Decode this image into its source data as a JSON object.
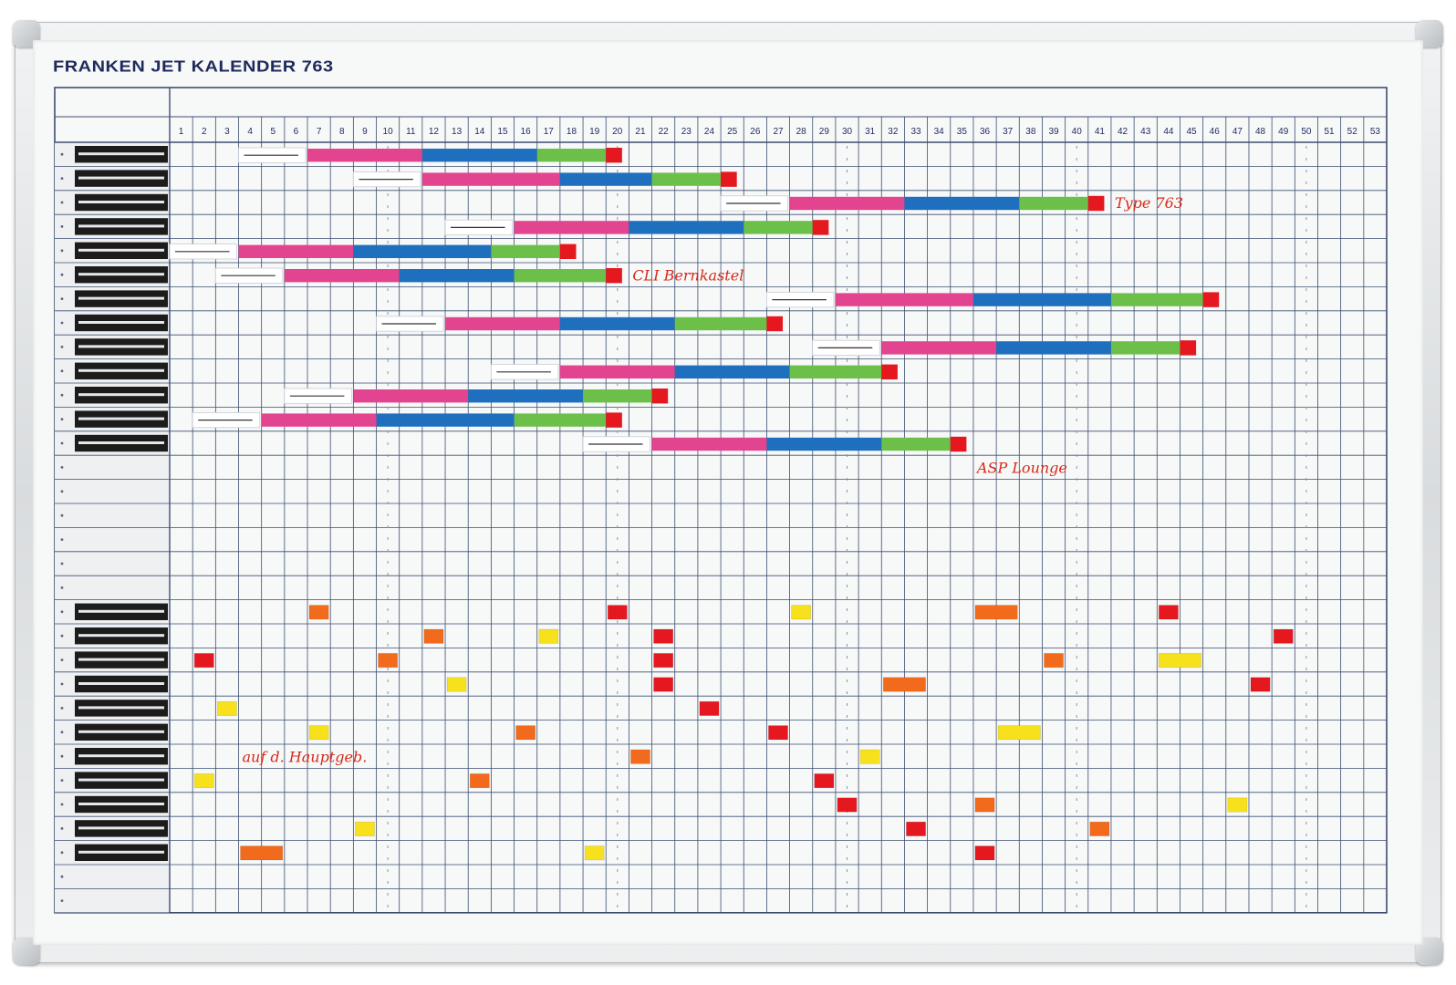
{
  "board": {
    "title": "FRANKEN JET KALENDER 763",
    "colors": {
      "line": "#3d4f70",
      "pink": "#e2448f",
      "blue": "#1f6fbf",
      "green": "#6cc04a",
      "red": "#e5171f",
      "orange": "#f26a1b",
      "yellow": "#f7e11c",
      "marker": "#d62a1a"
    },
    "day_numbers": [
      "1",
      "2",
      "3",
      "4",
      "5",
      "6",
      "7",
      "8",
      "9",
      "10",
      "11",
      "12",
      "13",
      "14",
      "15",
      "16",
      "17",
      "18",
      "19",
      "20",
      "21",
      "22",
      "23",
      "24",
      "25",
      "26",
      "27",
      "28",
      "29",
      "30",
      "31",
      "32",
      "33",
      "34",
      "35",
      "36",
      "37",
      "38",
      "39",
      "40",
      "41",
      "42",
      "43",
      "44",
      "45",
      "46",
      "47",
      "48",
      "49",
      "50",
      "51",
      "52",
      "53"
    ],
    "handwritten_notes": [
      {
        "text": "Type 763",
        "col": 41,
        "row": 2
      },
      {
        "text": "CLI Bernkastel",
        "col": 20,
        "row": 5
      },
      {
        "text": "ASP Lounge",
        "col": 35,
        "row": 13
      },
      {
        "text": "auf d. Hauptgeb.",
        "col": 3,
        "row": 25
      }
    ],
    "project_rows": [
      {
        "row": 0,
        "start": 6,
        "segments": [
          5,
          5,
          3
        ]
      },
      {
        "row": 1,
        "start": 11,
        "segments": [
          6,
          4,
          3
        ]
      },
      {
        "row": 2,
        "start": 27,
        "segments": [
          5,
          5,
          3
        ]
      },
      {
        "row": 3,
        "start": 15,
        "segments": [
          5,
          5,
          3
        ]
      },
      {
        "row": 4,
        "start": 3,
        "segments": [
          5,
          6,
          3
        ]
      },
      {
        "row": 5,
        "start": 5,
        "segments": [
          5,
          5,
          4
        ]
      },
      {
        "row": 6,
        "start": 29,
        "segments": [
          6,
          6,
          4
        ]
      },
      {
        "row": 7,
        "start": 12,
        "segments": [
          5,
          5,
          4
        ]
      },
      {
        "row": 8,
        "start": 31,
        "segments": [
          5,
          5,
          3
        ]
      },
      {
        "row": 9,
        "start": 17,
        "segments": [
          5,
          5,
          4
        ]
      },
      {
        "row": 10,
        "start": 8,
        "segments": [
          5,
          5,
          3
        ]
      },
      {
        "row": 11,
        "start": 4,
        "segments": [
          5,
          6,
          4
        ]
      },
      {
        "row": 12,
        "start": 21,
        "segments": [
          5,
          5,
          3
        ]
      }
    ],
    "magnets": [
      {
        "col": 6,
        "row": 19,
        "w": 1,
        "color": "orange"
      },
      {
        "col": 19,
        "row": 19,
        "w": 1,
        "color": "red"
      },
      {
        "col": 27,
        "row": 19,
        "w": 1,
        "color": "yellow"
      },
      {
        "col": 35,
        "row": 19,
        "w": 2,
        "color": "orange"
      },
      {
        "col": 43,
        "row": 19,
        "w": 1,
        "color": "red"
      },
      {
        "col": 11,
        "row": 20,
        "w": 1,
        "color": "orange"
      },
      {
        "col": 16,
        "row": 20,
        "w": 1,
        "color": "yellow"
      },
      {
        "col": 21,
        "row": 20,
        "w": 1,
        "color": "red"
      },
      {
        "col": 48,
        "row": 20,
        "w": 1,
        "color": "red"
      },
      {
        "col": 1,
        "row": 21,
        "w": 1,
        "color": "red"
      },
      {
        "col": 9,
        "row": 21,
        "w": 1,
        "color": "orange"
      },
      {
        "col": 21,
        "row": 21,
        "w": 1,
        "color": "red"
      },
      {
        "col": 38,
        "row": 21,
        "w": 1,
        "color": "orange"
      },
      {
        "col": 43,
        "row": 21,
        "w": 2,
        "color": "yellow"
      },
      {
        "col": 12,
        "row": 22,
        "w": 1,
        "color": "yellow"
      },
      {
        "col": 21,
        "row": 22,
        "w": 1,
        "color": "red"
      },
      {
        "col": 31,
        "row": 22,
        "w": 2,
        "color": "orange"
      },
      {
        "col": 47,
        "row": 22,
        "w": 1,
        "color": "red"
      },
      {
        "col": 2,
        "row": 23,
        "w": 1,
        "color": "yellow"
      },
      {
        "col": 23,
        "row": 23,
        "w": 1,
        "color": "red"
      },
      {
        "col": 6,
        "row": 24,
        "w": 1,
        "color": "yellow"
      },
      {
        "col": 15,
        "row": 24,
        "w": 1,
        "color": "orange"
      },
      {
        "col": 26,
        "row": 24,
        "w": 1,
        "color": "red"
      },
      {
        "col": 36,
        "row": 24,
        "w": 2,
        "color": "yellow"
      },
      {
        "col": 20,
        "row": 25,
        "w": 1,
        "color": "orange"
      },
      {
        "col": 30,
        "row": 25,
        "w": 1,
        "color": "yellow"
      },
      {
        "col": 1,
        "row": 26,
        "w": 1,
        "color": "yellow"
      },
      {
        "col": 13,
        "row": 26,
        "w": 1,
        "color": "orange"
      },
      {
        "col": 28,
        "row": 26,
        "w": 1,
        "color": "red"
      },
      {
        "col": 29,
        "row": 27,
        "w": 1,
        "color": "red"
      },
      {
        "col": 35,
        "row": 27,
        "w": 1,
        "color": "orange"
      },
      {
        "col": 46,
        "row": 27,
        "w": 1,
        "color": "yellow"
      },
      {
        "col": 8,
        "row": 28,
        "w": 1,
        "color": "yellow"
      },
      {
        "col": 32,
        "row": 28,
        "w": 1,
        "color": "red"
      },
      {
        "col": 40,
        "row": 28,
        "w": 1,
        "color": "orange"
      },
      {
        "col": 3,
        "row": 29,
        "w": 2,
        "color": "orange"
      },
      {
        "col": 18,
        "row": 29,
        "w": 1,
        "color": "yellow"
      },
      {
        "col": 35,
        "row": 29,
        "w": 1,
        "color": "red"
      }
    ]
  }
}
